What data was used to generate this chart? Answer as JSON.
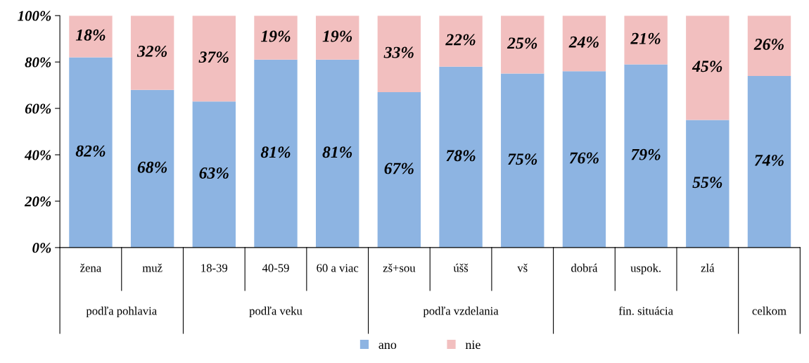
{
  "chart_data": {
    "type": "bar",
    "stacked": true,
    "categories": [
      "žena",
      "muž",
      "18-39",
      "40-59",
      "60 a viac",
      "zš+sou",
      "úšš",
      "vš",
      "dobrá",
      "uspok.",
      "zlá",
      null
    ],
    "series": [
      {
        "name": "ano",
        "color": "#8db4e2",
        "values": [
          82,
          68,
          63,
          81,
          81,
          67,
          78,
          75,
          76,
          79,
          55,
          74
        ]
      },
      {
        "name": "nie",
        "color": "#f2bfbf",
        "values": [
          18,
          32,
          37,
          19,
          19,
          33,
          22,
          25,
          24,
          21,
          45,
          26
        ]
      }
    ],
    "ylim": [
      0,
      100
    ],
    "yticks": [
      {
        "value": 0,
        "label": "0%"
      },
      {
        "value": 20,
        "label": "20%"
      },
      {
        "value": 40,
        "label": "40%"
      },
      {
        "value": 60,
        "label": "60%"
      },
      {
        "value": 80,
        "label": "80%"
      },
      {
        "value": 100,
        "label": "100%"
      }
    ],
    "value_labels": [
      [
        "82%",
        "68%",
        "63%",
        "81%",
        "81%",
        "67%",
        "78%",
        "75%",
        "76%",
        "79%",
        "55%",
        "74%"
      ],
      [
        "18%",
        "32%",
        "37%",
        "19%",
        "19%",
        "33%",
        "22%",
        "25%",
        "24%",
        "21%",
        "45%",
        "26%"
      ]
    ],
    "annotations": [
      "podľa pohlavia",
      "podľa veku",
      "podľa vzdelania",
      "fin. situácia",
      "celkom"
    ],
    "grid": false,
    "legend": "bottom"
  }
}
